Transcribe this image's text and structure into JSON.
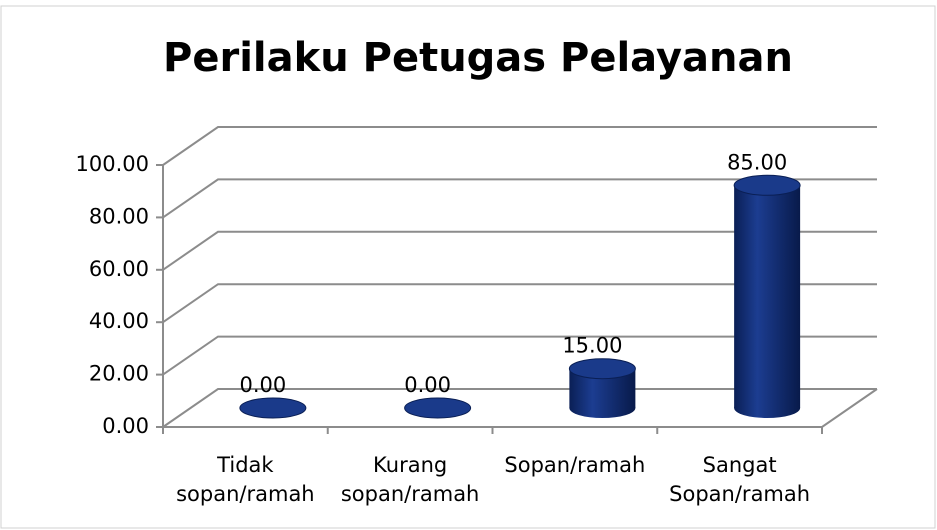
{
  "chart_data": {
    "type": "bar3d",
    "title": "Perilaku Petugas Pelayanan",
    "categories": [
      "Tidak sopan/ramah",
      "Kurang sopan/ramah",
      "Sopan/ramah",
      "Sangat Sopan/ramah"
    ],
    "values": [
      0,
      0,
      15,
      85
    ],
    "value_labels": [
      "0.00",
      "0.00",
      "15.00",
      "85.00"
    ],
    "color": "#14307a",
    "ylim": [
      0,
      100
    ],
    "yticks": [
      {
        "value": 0,
        "label": "0.00"
      },
      {
        "value": 20,
        "label": "20.00"
      },
      {
        "value": 40,
        "label": "40.00"
      },
      {
        "value": 60,
        "label": "60.00"
      },
      {
        "value": 80,
        "label": "80.00"
      },
      {
        "value": 100,
        "label": "100.00"
      }
    ],
    "grid": true
  }
}
